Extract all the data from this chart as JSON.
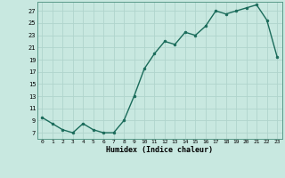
{
  "x": [
    0,
    1,
    2,
    3,
    4,
    5,
    6,
    7,
    8,
    9,
    10,
    11,
    12,
    13,
    14,
    15,
    16,
    17,
    18,
    19,
    20,
    21,
    22,
    23
  ],
  "y": [
    9.5,
    8.5,
    7.5,
    7.0,
    8.5,
    7.5,
    7.0,
    7.0,
    9.0,
    13.0,
    17.5,
    20.0,
    22.0,
    21.5,
    23.5,
    23.0,
    24.5,
    27.0,
    26.5,
    27.0,
    27.5,
    28.0,
    25.5,
    19.5
  ],
  "line_color": "#1a6b5a",
  "marker_color": "#1a6b5a",
  "bg_color": "#c8e8e0",
  "grid_color": "#b0d4cc",
  "xlabel": "Humidex (Indice chaleur)",
  "xlim": [
    -0.5,
    23.5
  ],
  "ylim": [
    6,
    28.5
  ],
  "yticks": [
    7,
    9,
    11,
    13,
    15,
    17,
    19,
    21,
    23,
    25,
    27
  ],
  "xticks": [
    0,
    1,
    2,
    3,
    4,
    5,
    6,
    7,
    8,
    9,
    10,
    11,
    12,
    13,
    14,
    15,
    16,
    17,
    18,
    19,
    20,
    21,
    22,
    23
  ]
}
